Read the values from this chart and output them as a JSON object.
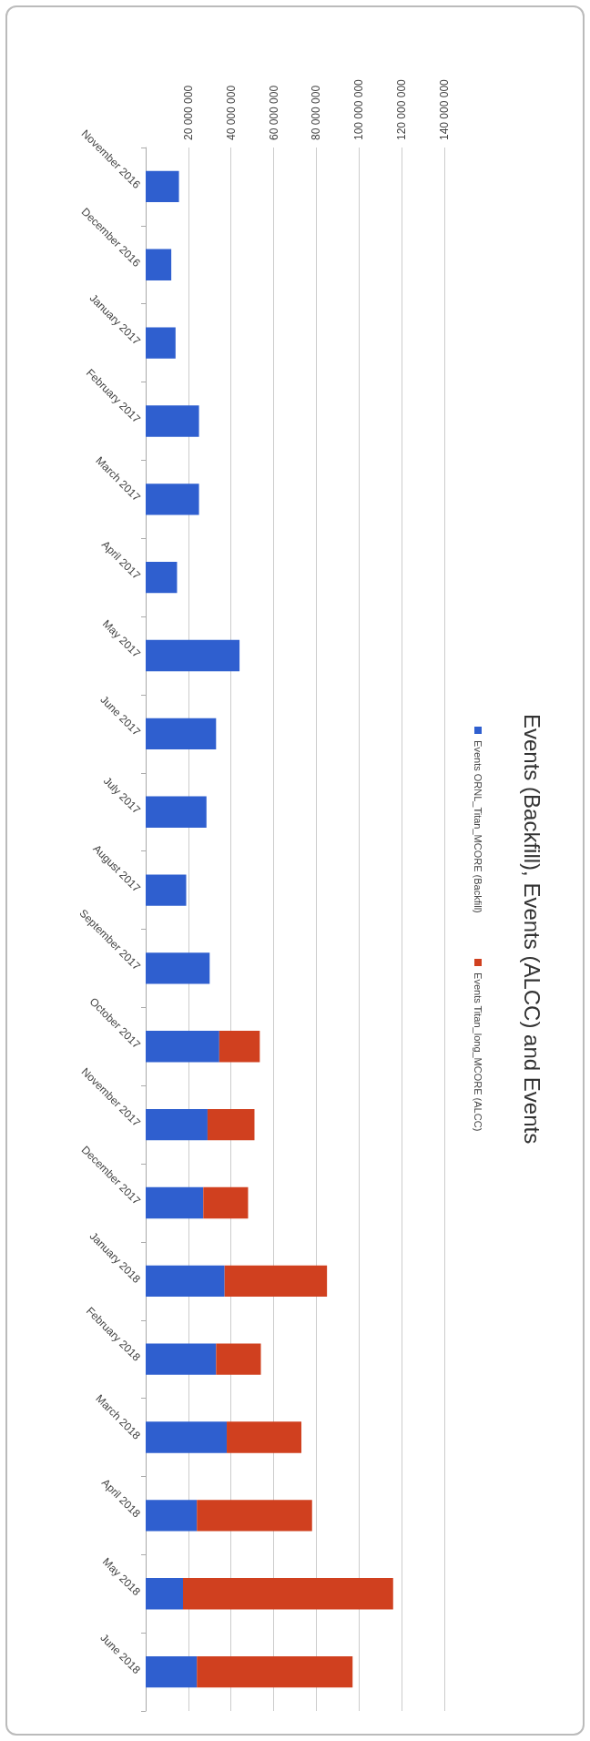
{
  "chart_data": {
    "type": "bar",
    "title": "Events (Backfill), Events (ALCC) and Events",
    "categories": [
      "November 2016",
      "December 2016",
      "January 2017",
      "February 2017",
      "March 2017",
      "April 2017",
      "May 2017",
      "June 2017",
      "July 2017",
      "August 2017",
      "September 2017",
      "October 2017",
      "November 2017",
      "December 2017",
      "January 2018",
      "February 2018",
      "March 2018",
      "April 2018",
      "May 2018",
      "June 2018"
    ],
    "series": [
      {
        "name": "Events ORNL_Titan_MCORE (Backfill)",
        "color": "#2f5fcf",
        "values": [
          15600000,
          12000000,
          14000000,
          25000000,
          25000000,
          14700000,
          44000000,
          33000000,
          28500000,
          19000000,
          30000000,
          34500000,
          29000000,
          27000000,
          37000000,
          33000000,
          38000000,
          24000000,
          17500000,
          24000000
        ]
      },
      {
        "name": "Events Titan_long_MCORE (ALCC)",
        "color": "#d0401f",
        "values": [
          null,
          null,
          null,
          null,
          null,
          null,
          null,
          null,
          null,
          null,
          null,
          19000000,
          22000000,
          21000000,
          48000000,
          21000000,
          35000000,
          54000000,
          98500000,
          73000000
        ]
      }
    ],
    "stacked": true,
    "orientation": "horizontal",
    "xlim": [
      0,
      140000000
    ],
    "xticks": [
      {
        "value": 0,
        "label": null
      },
      {
        "value": 20000000,
        "label": "20 000 000"
      },
      {
        "value": 40000000,
        "label": "40 000 000"
      },
      {
        "value": 60000000,
        "label": "60 000 000"
      },
      {
        "value": 80000000,
        "label": "80 000 000"
      },
      {
        "value": 100000000,
        "label": "100 000 000"
      },
      {
        "value": 120000000,
        "label": "120 000 000"
      },
      {
        "value": 140000000,
        "label": "140 000 000"
      }
    ],
    "grid": "x",
    "legend": "right"
  }
}
